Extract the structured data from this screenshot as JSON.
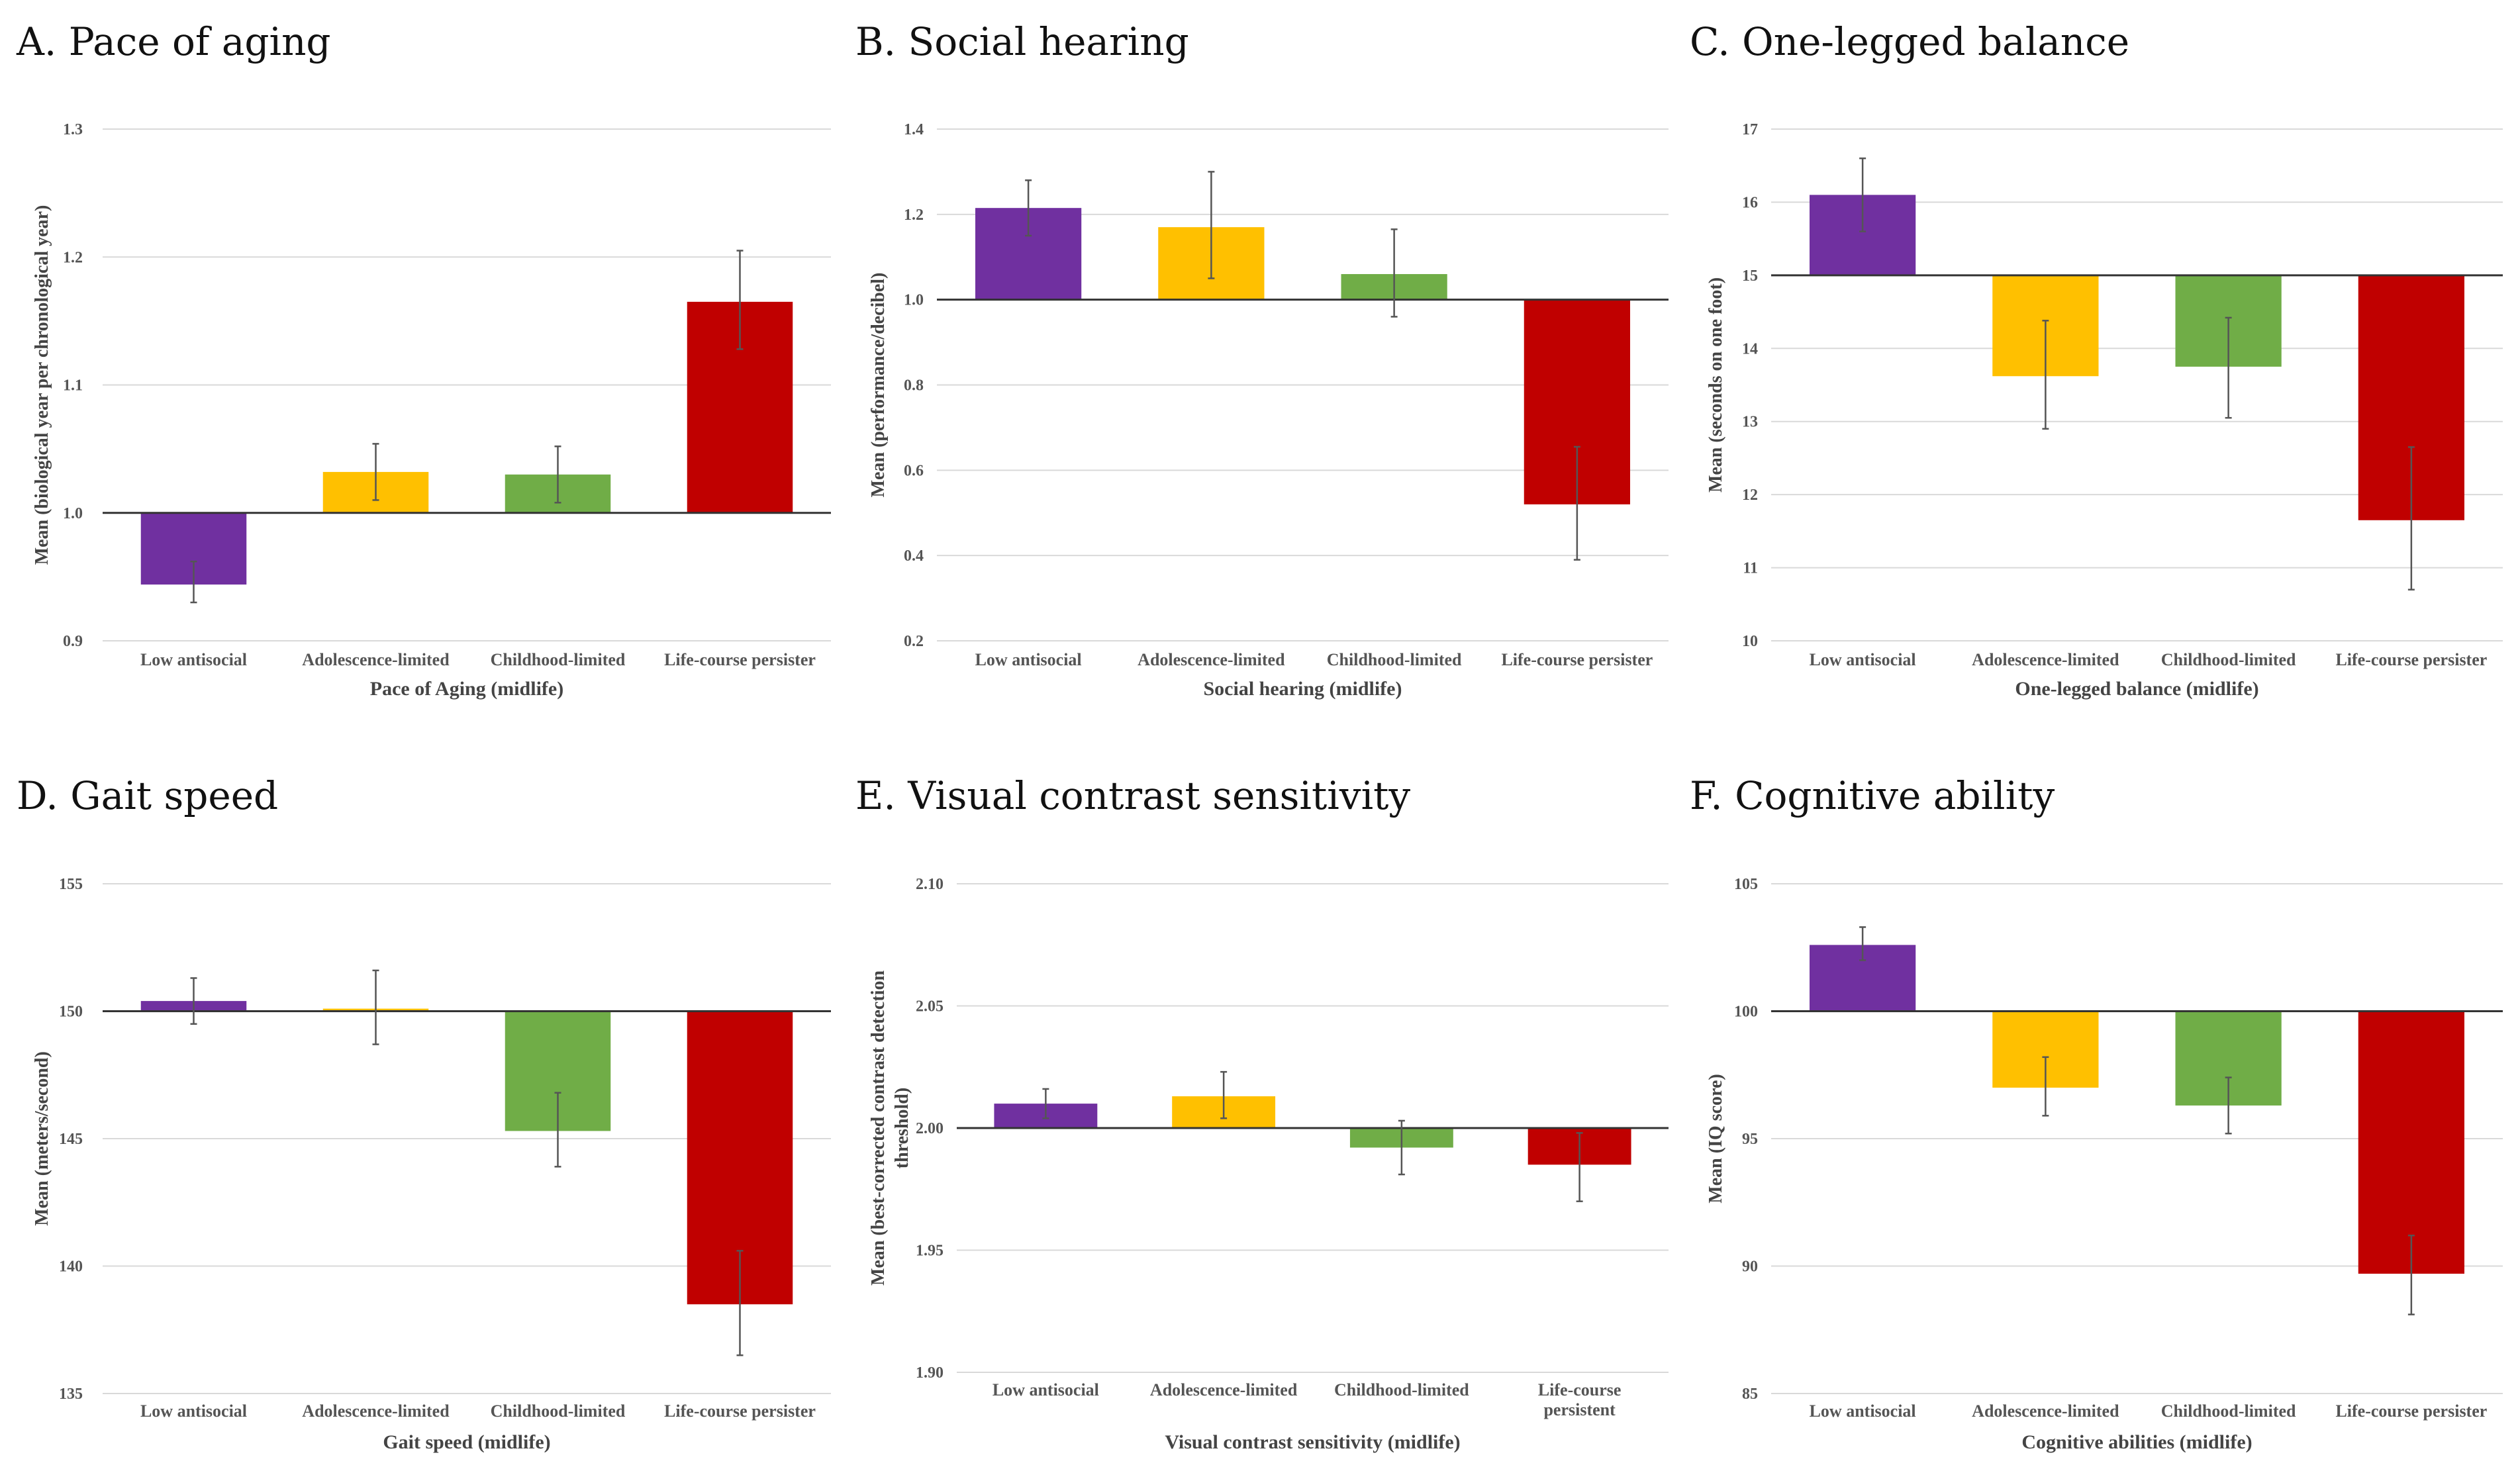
{
  "categories": [
    "Low antisocial",
    "Adolescence-limited",
    "Childhood-limited",
    "Life-course persistent"
  ],
  "colors": [
    "#7030a0",
    "#ffc000",
    "#70ad47",
    "#c00000"
  ],
  "chart_data": [
    {
      "type": "bar",
      "title": "A. Pace of aging",
      "xlabel": "Pace of Aging (midlife)",
      "ylabel": "Mean (biological year per chronological year)",
      "categories": [
        "Low antisocial",
        "Adolescence-limited",
        "Childhood-limited",
        "Life-course persister"
      ],
      "ylim": [
        0.9,
        1.3
      ],
      "yticks": [
        "0.9",
        "1.0",
        "1.1",
        "1.2",
        "1.3"
      ],
      "baseline": 1.0,
      "values": [
        0.944,
        1.032,
        1.03,
        1.165
      ],
      "err_low": [
        0.93,
        1.01,
        1.008,
        1.128
      ],
      "err_high": [
        0.962,
        1.054,
        1.052,
        1.205
      ]
    },
    {
      "type": "bar",
      "title": "B. Social hearing",
      "xlabel": "Social hearing (midlife)",
      "ylabel": "Mean (performance/decibel)",
      "categories": [
        "Low antisocial",
        "Adolescence-limited",
        "Childhood-limited",
        "Life-course persister"
      ],
      "ylim": [
        0.2,
        1.4
      ],
      "yticks": [
        "0.2",
        "0.4",
        "0.6",
        "0.8",
        "1.0",
        "1.2",
        "1.4"
      ],
      "baseline": 1.0,
      "values": [
        1.215,
        1.17,
        1.06,
        0.52
      ],
      "err_low": [
        1.15,
        1.05,
        0.96,
        0.39
      ],
      "err_high": [
        1.28,
        1.3,
        1.165,
        0.655
      ]
    },
    {
      "type": "bar",
      "title": "C. One-legged balance",
      "xlabel": "One-legged balance (midlife)",
      "ylabel": "Mean (seconds on one foot)",
      "categories": [
        "Low antisocial",
        "Adolescence-limited",
        "Childhood-limited",
        "Life-course persister"
      ],
      "ylim": [
        10,
        17
      ],
      "yticks": [
        "10",
        "11",
        "12",
        "13",
        "14",
        "15",
        "16",
        "17"
      ],
      "baseline": 15,
      "values": [
        16.1,
        13.62,
        13.75,
        11.65
      ],
      "err_low": [
        15.6,
        12.9,
        13.05,
        10.7
      ],
      "err_high": [
        16.6,
        14.38,
        14.42,
        12.65
      ]
    },
    {
      "type": "bar",
      "title": "D. Gait speed",
      "xlabel": "Gait speed (midlife)",
      "ylabel": "Mean (meters/second)",
      "categories": [
        "Low antisocial",
        "Adolescence-limited",
        "Childhood-limited",
        "Life-course persister"
      ],
      "ylim": [
        135,
        155
      ],
      "yticks": [
        "135",
        "140",
        "145",
        "150",
        "155"
      ],
      "baseline": 150,
      "values": [
        150.4,
        150.1,
        145.3,
        138.5
      ],
      "err_low": [
        149.5,
        148.7,
        143.9,
        136.5
      ],
      "err_high": [
        151.3,
        151.6,
        146.8,
        140.6
      ]
    },
    {
      "type": "bar",
      "title": "E. Visual contrast sensitivity",
      "xlabel": "Visual contrast sensitivity (midlife)",
      "ylabel": "Mean (best-corrected contrast detection threshold)",
      "ylabel_lines": [
        "Mean (best-corrected contrast detection",
        "threshold)"
      ],
      "categories": [
        "Low antisocial",
        "Adolescence-limited",
        "Childhood-limited",
        "Life-course persistent"
      ],
      "category_lines": [
        [
          "Low antisocial"
        ],
        [
          "Adolescence-limited"
        ],
        [
          "Childhood-limited"
        ],
        [
          "Life-course",
          "persistent"
        ]
      ],
      "ylim": [
        1.9,
        2.1
      ],
      "yticks": [
        "1.90",
        "1.95",
        "2.00",
        "2.05",
        "2.10"
      ],
      "baseline": 2.0,
      "values": [
        2.01,
        2.013,
        1.992,
        1.985
      ],
      "err_low": [
        2.004,
        2.004,
        1.981,
        1.97
      ],
      "err_high": [
        2.016,
        2.023,
        2.003,
        1.998
      ]
    },
    {
      "type": "bar",
      "title": "F. Cognitive ability",
      "xlabel": "Cognitive abilities (midlife)",
      "ylabel": "Mean (IQ score)",
      "categories": [
        "Low antisocial",
        "Adolescence-limited",
        "Childhood-limited",
        "Life-course persister"
      ],
      "ylim": [
        85,
        105
      ],
      "yticks": [
        "85",
        "90",
        "95",
        "100",
        "105"
      ],
      "baseline": 100,
      "values": [
        102.6,
        97.0,
        96.3,
        89.7
      ],
      "err_low": [
        102.0,
        95.9,
        95.2,
        88.1
      ],
      "err_high": [
        103.3,
        98.2,
        97.4,
        91.2
      ]
    }
  ]
}
